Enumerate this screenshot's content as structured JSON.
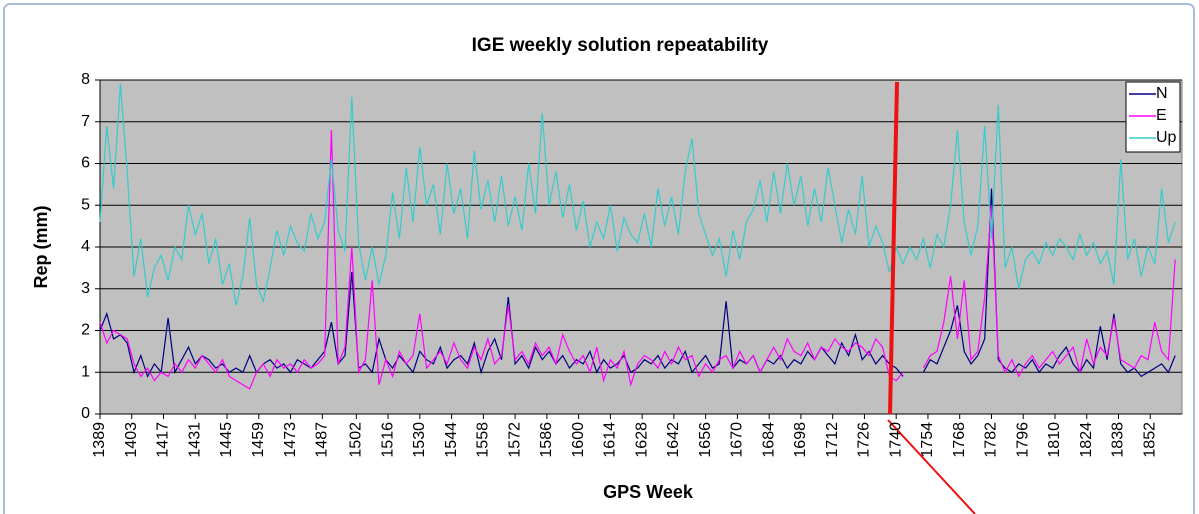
{
  "chart_data": {
    "type": "line",
    "title": "IGE weekly solution repeatability",
    "x_label": "GPS Week",
    "y_label": "Rep (mm)",
    "x": [
      1389,
      1392,
      1395,
      1398,
      1401,
      1404,
      1407,
      1410,
      1413,
      1416,
      1419,
      1422,
      1425,
      1428,
      1431,
      1434,
      1437,
      1440,
      1443,
      1446,
      1449,
      1452,
      1455,
      1458,
      1461,
      1464,
      1467,
      1470,
      1473,
      1476,
      1479,
      1482,
      1485,
      1488,
      1491,
      1494,
      1497,
      1500,
      1503,
      1506,
      1509,
      1512,
      1515,
      1518,
      1521,
      1524,
      1527,
      1530,
      1533,
      1536,
      1539,
      1542,
      1545,
      1548,
      1551,
      1554,
      1557,
      1560,
      1563,
      1566,
      1569,
      1572,
      1575,
      1578,
      1581,
      1584,
      1587,
      1590,
      1593,
      1596,
      1599,
      1602,
      1605,
      1608,
      1611,
      1614,
      1617,
      1620,
      1623,
      1626,
      1629,
      1632,
      1635,
      1638,
      1641,
      1644,
      1647,
      1650,
      1653,
      1656,
      1659,
      1662,
      1665,
      1668,
      1671,
      1674,
      1677,
      1680,
      1683,
      1686,
      1689,
      1692,
      1695,
      1698,
      1701,
      1704,
      1707,
      1710,
      1713,
      1716,
      1719,
      1722,
      1725,
      1728,
      1731,
      1734,
      1737,
      1740,
      1743,
      1746,
      1749,
      1752,
      1755,
      1758,
      1761,
      1764,
      1767,
      1770,
      1773,
      1776,
      1779,
      1782,
      1785,
      1788,
      1791,
      1794,
      1797,
      1800,
      1803,
      1806,
      1809,
      1812,
      1815,
      1818,
      1821,
      1824,
      1827,
      1830,
      1833,
      1836,
      1839,
      1842,
      1845,
      1848,
      1851,
      1854,
      1857,
      1860,
      1863
    ],
    "series": [
      {
        "name": "N",
        "color": "#000080",
        "values": [
          2.0,
          2.4,
          1.8,
          1.9,
          1.7,
          1.0,
          1.4,
          0.9,
          1.2,
          1.0,
          2.3,
          1.0,
          1.3,
          1.6,
          1.2,
          1.4,
          1.3,
          1.1,
          1.2,
          1.0,
          1.1,
          1.0,
          1.4,
          1.0,
          1.2,
          1.3,
          1.1,
          1.2,
          1.0,
          1.3,
          1.2,
          1.1,
          1.3,
          1.5,
          2.2,
          1.2,
          1.4,
          3.4,
          1.1,
          1.2,
          1.0,
          1.8,
          1.3,
          1.1,
          1.4,
          1.2,
          1.0,
          1.5,
          1.3,
          1.2,
          1.6,
          1.1,
          1.3,
          1.4,
          1.2,
          1.7,
          1.0,
          1.5,
          1.8,
          1.3,
          2.8,
          1.2,
          1.4,
          1.1,
          1.6,
          1.3,
          1.5,
          1.2,
          1.4,
          1.1,
          1.3,
          1.2,
          1.5,
          1.0,
          1.3,
          1.1,
          1.2,
          1.4,
          1.0,
          1.1,
          1.3,
          1.2,
          1.4,
          1.1,
          1.3,
          1.2,
          1.5,
          1.0,
          1.2,
          1.4,
          1.1,
          1.2,
          2.7,
          1.1,
          1.3,
          1.2,
          1.4,
          1.0,
          1.3,
          1.2,
          1.4,
          1.1,
          1.3,
          1.2,
          1.5,
          1.3,
          1.6,
          1.4,
          1.2,
          1.7,
          1.4,
          1.9,
          1.3,
          1.5,
          1.2,
          1.4,
          1.2,
          1.1,
          0.9,
          null,
          null,
          1.0,
          1.3,
          1.2,
          1.6,
          2.0,
          2.6,
          1.5,
          1.2,
          1.4,
          1.8,
          5.4,
          1.3,
          1.1,
          1.0,
          1.2,
          1.1,
          1.3,
          1.0,
          1.2,
          1.1,
          1.4,
          1.6,
          1.2,
          1.0,
          1.3,
          1.1,
          2.1,
          1.3,
          2.4,
          1.2,
          1.0,
          1.1,
          0.9,
          1.0,
          1.1,
          1.2,
          1.0,
          1.4
        ]
      },
      {
        "name": "E",
        "color": "#ff00ff",
        "values": [
          2.2,
          1.7,
          2.0,
          1.9,
          1.8,
          1.2,
          0.9,
          1.1,
          0.8,
          1.0,
          0.9,
          1.2,
          1.0,
          1.3,
          1.1,
          1.4,
          1.2,
          1.0,
          1.3,
          0.9,
          0.8,
          0.7,
          0.6,
          1.0,
          1.2,
          0.9,
          1.3,
          1.1,
          1.2,
          1.0,
          1.3,
          1.1,
          1.2,
          1.4,
          6.8,
          1.2,
          1.6,
          4.0,
          1.0,
          1.3,
          3.2,
          0.7,
          1.3,
          0.9,
          1.5,
          1.2,
          1.4,
          2.4,
          1.1,
          1.3,
          1.5,
          1.2,
          1.7,
          1.3,
          1.1,
          1.6,
          1.3,
          1.8,
          1.2,
          1.4,
          2.6,
          1.3,
          1.5,
          1.2,
          1.7,
          1.4,
          1.6,
          1.2,
          1.9,
          1.5,
          1.2,
          1.4,
          1.0,
          1.6,
          0.8,
          1.3,
          1.1,
          1.5,
          0.7,
          1.2,
          1.4,
          1.3,
          1.1,
          1.5,
          1.2,
          1.6,
          1.3,
          1.4,
          0.9,
          1.2,
          1.0,
          1.3,
          1.4,
          1.1,
          1.5,
          1.2,
          1.4,
          1.0,
          1.3,
          1.6,
          1.3,
          1.8,
          1.5,
          1.4,
          1.7,
          1.3,
          1.6,
          1.5,
          1.8,
          1.6,
          1.5,
          1.7,
          1.6,
          1.4,
          1.8,
          1.6,
          0.9,
          0.8,
          1.0,
          null,
          null,
          1.1,
          1.4,
          1.5,
          2.2,
          3.3,
          1.8,
          3.2,
          1.3,
          1.5,
          2.8,
          5.0,
          1.4,
          1.0,
          1.3,
          0.9,
          1.2,
          1.4,
          1.1,
          1.3,
          1.5,
          1.2,
          1.4,
          1.6,
          1.0,
          1.8,
          1.2,
          1.6,
          1.4,
          2.3,
          1.3,
          1.2,
          1.1,
          1.4,
          1.3,
          2.2,
          1.5,
          1.3,
          3.7
        ]
      },
      {
        "name": "Up",
        "color": "#33cccc",
        "values": [
          4.6,
          6.9,
          5.4,
          7.9,
          5.8,
          3.3,
          4.2,
          2.8,
          3.5,
          3.8,
          3.2,
          4.0,
          3.7,
          5.0,
          4.3,
          4.8,
          3.6,
          4.2,
          3.1,
          3.6,
          2.6,
          3.3,
          4.7,
          3.1,
          2.7,
          3.5,
          4.4,
          3.8,
          4.5,
          4.1,
          3.9,
          4.8,
          4.2,
          4.6,
          6.1,
          4.4,
          3.9,
          7.6,
          4.1,
          3.2,
          4.0,
          3.1,
          3.8,
          5.3,
          4.2,
          5.9,
          4.6,
          6.4,
          5.0,
          5.5,
          4.3,
          6.0,
          4.8,
          5.4,
          4.2,
          6.3,
          4.9,
          5.6,
          4.6,
          5.7,
          4.5,
          5.2,
          4.4,
          6.0,
          4.8,
          7.2,
          5.0,
          5.8,
          4.7,
          5.5,
          4.4,
          5.1,
          4.0,
          4.6,
          4.2,
          5.0,
          3.9,
          4.7,
          4.3,
          4.1,
          4.8,
          4.0,
          5.4,
          4.5,
          5.2,
          4.3,
          5.8,
          6.6,
          4.8,
          4.3,
          3.8,
          4.2,
          3.3,
          4.4,
          3.7,
          4.6,
          4.9,
          5.6,
          4.6,
          5.8,
          4.8,
          6.0,
          5.0,
          5.7,
          4.5,
          5.4,
          4.6,
          5.9,
          5.0,
          4.1,
          4.9,
          4.3,
          5.7,
          4.0,
          4.5,
          4.1,
          3.4,
          4.0,
          3.6,
          4.0,
          3.7,
          4.2,
          3.5,
          4.3,
          4.0,
          5.0,
          6.8,
          4.6,
          3.8,
          4.5,
          6.9,
          4.2,
          7.4,
          3.5,
          4.0,
          3.0,
          3.7,
          3.9,
          3.6,
          4.1,
          3.8,
          4.2,
          4.0,
          3.7,
          4.3,
          3.8,
          4.1,
          3.6,
          3.9,
          3.1,
          6.1,
          3.7,
          4.2,
          3.3,
          4.0,
          3.6,
          5.4,
          4.1,
          4.6
        ]
      }
    ],
    "xlim": [
      1389,
      1866
    ],
    "xticks": [
      1389,
      1403,
      1417,
      1431,
      1445,
      1459,
      1473,
      1487,
      1502,
      1516,
      1530,
      1544,
      1558,
      1572,
      1586,
      1600,
      1614,
      1628,
      1642,
      1656,
      1670,
      1684,
      1698,
      1712,
      1726,
      1740,
      1754,
      1768,
      1782,
      1796,
      1810,
      1824,
      1838,
      1852
    ],
    "ylim": [
      0,
      8
    ],
    "yticks": [
      0,
      1,
      2,
      3,
      4,
      5,
      6,
      7,
      8
    ],
    "grid": true,
    "legend": "top-right",
    "plot_background": "#c0c0c0"
  }
}
